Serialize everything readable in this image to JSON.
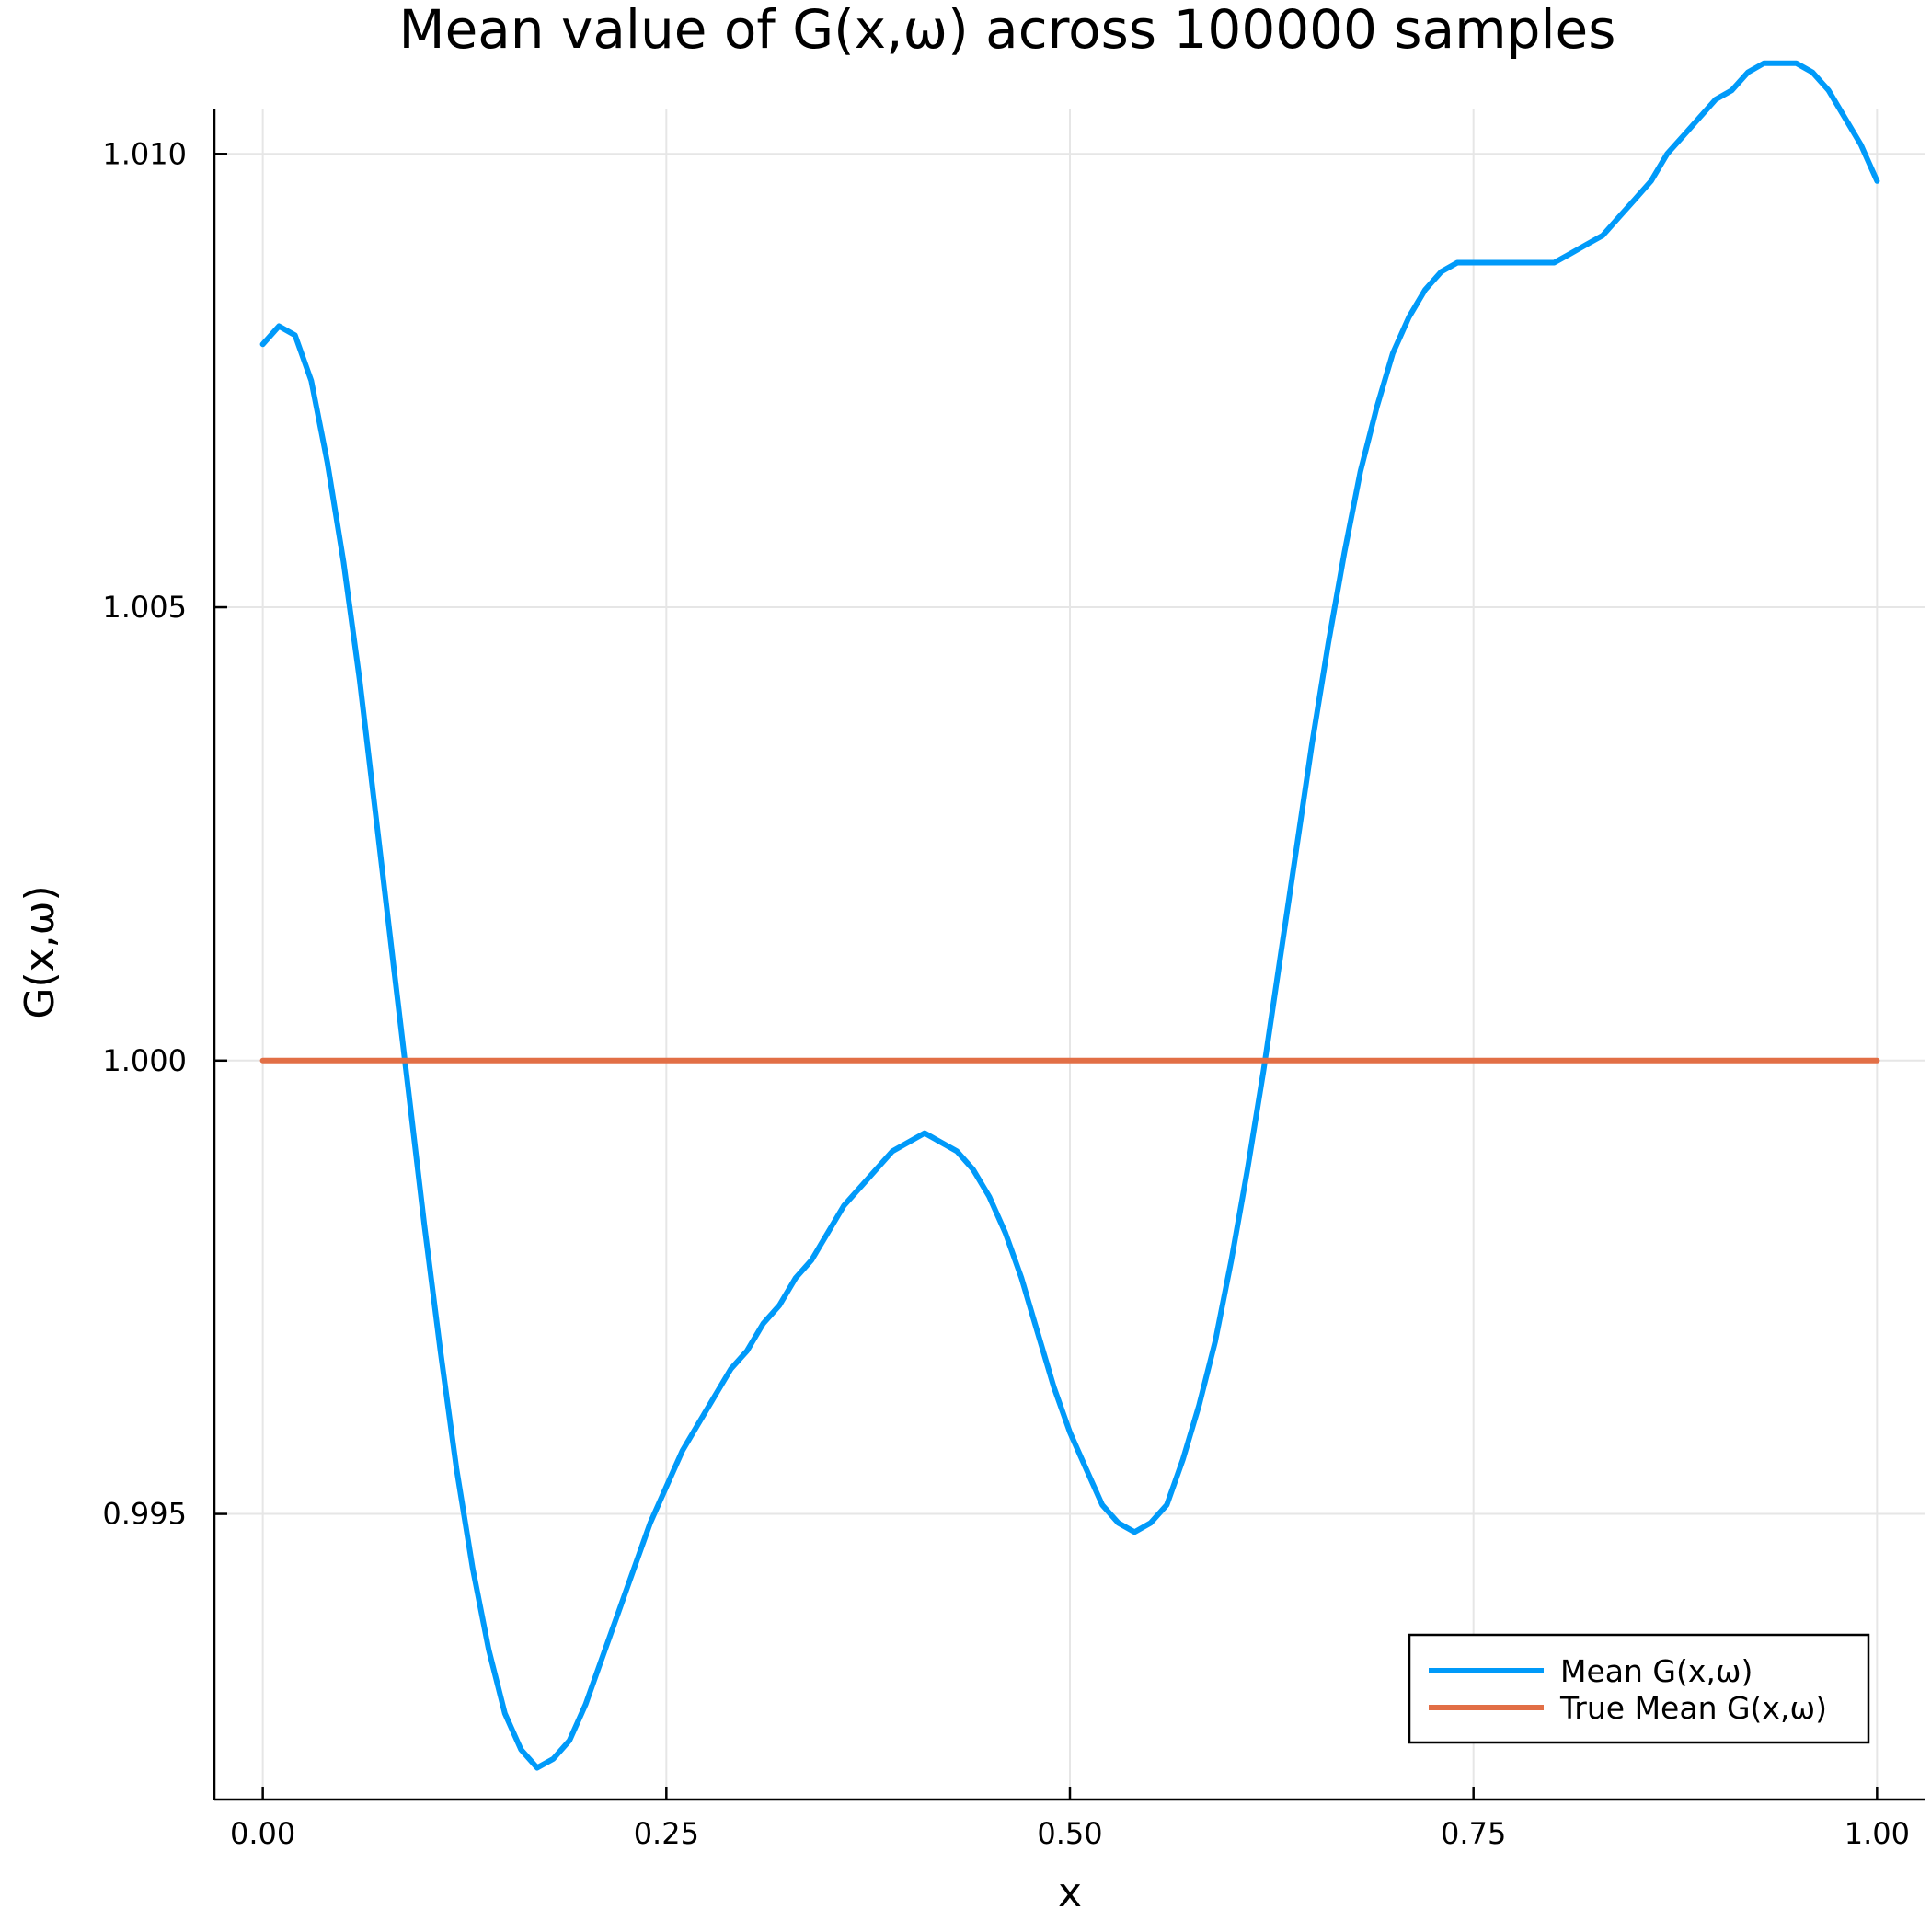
{
  "chart_data": {
    "type": "line",
    "title": "Mean value of G(x,ω) across 100000 samples",
    "xlabel": "x",
    "ylabel": "G(x,ω)",
    "xlim": [
      -0.03,
      1.03
    ],
    "ylim": [
      0.99185,
      1.0105
    ],
    "xticks": [
      0.0,
      0.25,
      0.5,
      0.75,
      1.0
    ],
    "xtick_labels": [
      "0.00",
      "0.25",
      "0.50",
      "0.75",
      "1.00"
    ],
    "yticks": [
      0.995,
      1.0,
      1.005,
      1.01
    ],
    "ytick_labels": [
      "0.995",
      "1.000",
      "1.005",
      "1.010"
    ],
    "grid": true,
    "legend_position": "bottom-right",
    "series": [
      {
        "name": "Mean G(x,ω)",
        "color": "#009af9",
        "x": [
          0.0,
          0.01,
          0.02,
          0.03,
          0.04,
          0.05,
          0.06,
          0.07,
          0.08,
          0.09,
          0.1,
          0.11,
          0.12,
          0.13,
          0.14,
          0.15,
          0.16,
          0.17,
          0.18,
          0.19,
          0.2,
          0.21,
          0.22,
          0.23,
          0.24,
          0.25,
          0.26,
          0.27,
          0.28,
          0.29,
          0.3,
          0.31,
          0.32,
          0.33,
          0.34,
          0.35,
          0.36,
          0.37,
          0.38,
          0.39,
          0.4,
          0.41,
          0.42,
          0.43,
          0.44,
          0.45,
          0.46,
          0.47,
          0.48,
          0.49,
          0.5,
          0.51,
          0.52,
          0.53,
          0.54,
          0.55,
          0.56,
          0.57,
          0.58,
          0.59,
          0.6,
          0.61,
          0.62,
          0.63,
          0.64,
          0.65,
          0.66,
          0.67,
          0.68,
          0.69,
          0.7,
          0.71,
          0.72,
          0.73,
          0.74,
          0.75,
          0.76,
          0.77,
          0.78,
          0.79,
          0.8,
          0.81,
          0.82,
          0.83,
          0.84,
          0.85,
          0.86,
          0.87,
          0.88,
          0.89,
          0.9,
          0.91,
          0.92,
          0.93,
          0.94,
          0.95,
          0.96,
          0.97,
          0.98,
          0.99,
          1.0
        ],
        "values": [
          1.0079,
          1.0081,
          1.008,
          1.0075,
          1.0066,
          1.0055,
          1.0042,
          1.0027,
          1.0012,
          0.9997,
          0.9982,
          0.9968,
          0.9955,
          0.9944,
          0.9935,
          0.9928,
          0.9924,
          0.9922,
          0.9923,
          0.9925,
          0.9929,
          0.9934,
          0.9939,
          0.9944,
          0.9949,
          0.9953,
          0.9957,
          0.996,
          0.9963,
          0.9966,
          0.9968,
          0.9971,
          0.9973,
          0.9976,
          0.9978,
          0.9981,
          0.9984,
          0.9986,
          0.9988,
          0.999,
          0.9991,
          0.9992,
          0.9991,
          0.999,
          0.9988,
          0.9985,
          0.9981,
          0.9976,
          0.997,
          0.9964,
          0.9959,
          0.9955,
          0.9951,
          0.9949,
          0.9948,
          0.9949,
          0.9951,
          0.9956,
          0.9962,
          0.9969,
          0.9978,
          0.9988,
          0.9999,
          1.0011,
          1.0023,
          1.0035,
          1.0046,
          1.0056,
          1.0065,
          1.0072,
          1.0078,
          1.0082,
          1.0085,
          1.0087,
          1.0088,
          1.0088,
          1.0088,
          1.0088,
          1.0088,
          1.0088,
          1.0088,
          1.0089,
          1.009,
          1.0091,
          1.0093,
          1.0095,
          1.0097,
          1.01,
          1.0102,
          1.0104,
          1.0106,
          1.0107,
          1.0109,
          1.011,
          1.011,
          1.011,
          1.0109,
          1.0107,
          1.0104,
          1.0101,
          1.0097
        ]
      },
      {
        "name": "True Mean G(x,ω)",
        "color": "#e26f46",
        "x": [
          0.0,
          1.0
        ],
        "values": [
          1.0,
          1.0
        ]
      }
    ]
  }
}
